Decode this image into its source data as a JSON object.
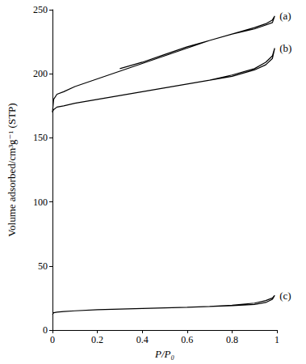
{
  "chart_data": {
    "type": "line",
    "x_label": "P/P₀",
    "y_label": "Volume adsorbed/cm³g⁻¹ (STP)",
    "xlim": [
      0,
      1
    ],
    "xticks": [
      0,
      0.2,
      0.4,
      0.6,
      0.8,
      1
    ],
    "ylim": [
      0,
      250
    ],
    "yticks": [
      0,
      50,
      100,
      150,
      200,
      250
    ],
    "grid": false,
    "series": [
      {
        "name": "(a)",
        "color": "#000000",
        "x": [
          0,
          0.005,
          0.02,
          0.05,
          0.1,
          0.2,
          0.3,
          0.4,
          0.5,
          0.6,
          0.7,
          0.8,
          0.9,
          0.95,
          0.98,
          0.99,
          0.98,
          0.95,
          0.9,
          0.8,
          0.7,
          0.6,
          0.5,
          0.4,
          0.3
        ],
        "values": [
          170,
          180,
          184,
          186,
          190,
          196,
          202,
          208,
          214,
          220,
          226,
          231,
          236,
          239,
          242,
          245,
          240,
          238,
          235,
          231,
          226,
          221,
          215,
          209,
          204
        ]
      },
      {
        "name": "(b)",
        "color": "#000000",
        "x": [
          0,
          0.005,
          0.02,
          0.05,
          0.1,
          0.2,
          0.3,
          0.4,
          0.5,
          0.6,
          0.7,
          0.8,
          0.9,
          0.95,
          0.98,
          0.99,
          0.98,
          0.95,
          0.9,
          0.8,
          0.7,
          0.6,
          0.5,
          0.4,
          0.3
        ],
        "values": [
          170,
          172,
          174,
          175,
          177,
          180,
          183,
          186,
          189,
          192,
          195,
          199,
          204,
          209,
          214,
          220,
          212,
          207,
          203,
          198,
          195,
          192,
          189,
          186,
          183
        ]
      },
      {
        "name": "(c)",
        "color": "#000000",
        "x": [
          0,
          0.005,
          0.02,
          0.05,
          0.1,
          0.2,
          0.3,
          0.4,
          0.5,
          0.6,
          0.7,
          0.8,
          0.9,
          0.95,
          0.98,
          0.99,
          0.98,
          0.95,
          0.9,
          0.8,
          0.7,
          0.6,
          0.5,
          0.4,
          0.3
        ],
        "values": [
          12,
          13.5,
          14,
          14.5,
          15,
          15.8,
          16.3,
          16.8,
          17.3,
          17.8,
          18.4,
          19.3,
          21,
          23,
          25,
          27,
          24,
          21.5,
          20,
          19,
          18.3,
          17.8,
          17.3,
          16.8,
          16.3
        ]
      }
    ]
  }
}
